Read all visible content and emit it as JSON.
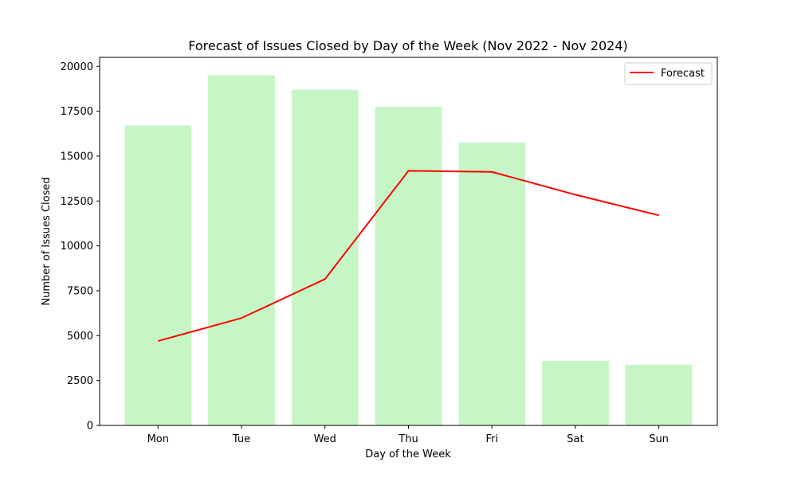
{
  "chart_data": {
    "type": "bar",
    "title": "Forecast of Issues Closed by Day of the Week (Nov 2022 - Nov 2024)",
    "xlabel": "Day of the Week",
    "ylabel": "Number of Issues Closed",
    "categories": [
      "Mon",
      "Tue",
      "Wed",
      "Thu",
      "Fri",
      "Sat",
      "Sun"
    ],
    "bar_values": [
      16700,
      19500,
      18700,
      17750,
      15750,
      3600,
      3380
    ],
    "bar_color": "#c6f6c6",
    "forecast": {
      "name": "Forecast",
      "type": "line",
      "color": "#ff0000",
      "values": [
        4700,
        5980,
        8150,
        14180,
        14120,
        12850,
        11700
      ]
    },
    "ylim": [
      0,
      20500
    ],
    "yticks": [
      0,
      2500,
      5000,
      7500,
      10000,
      12500,
      15000,
      17500,
      20000
    ],
    "grid": false,
    "legend_position": "top-right"
  }
}
